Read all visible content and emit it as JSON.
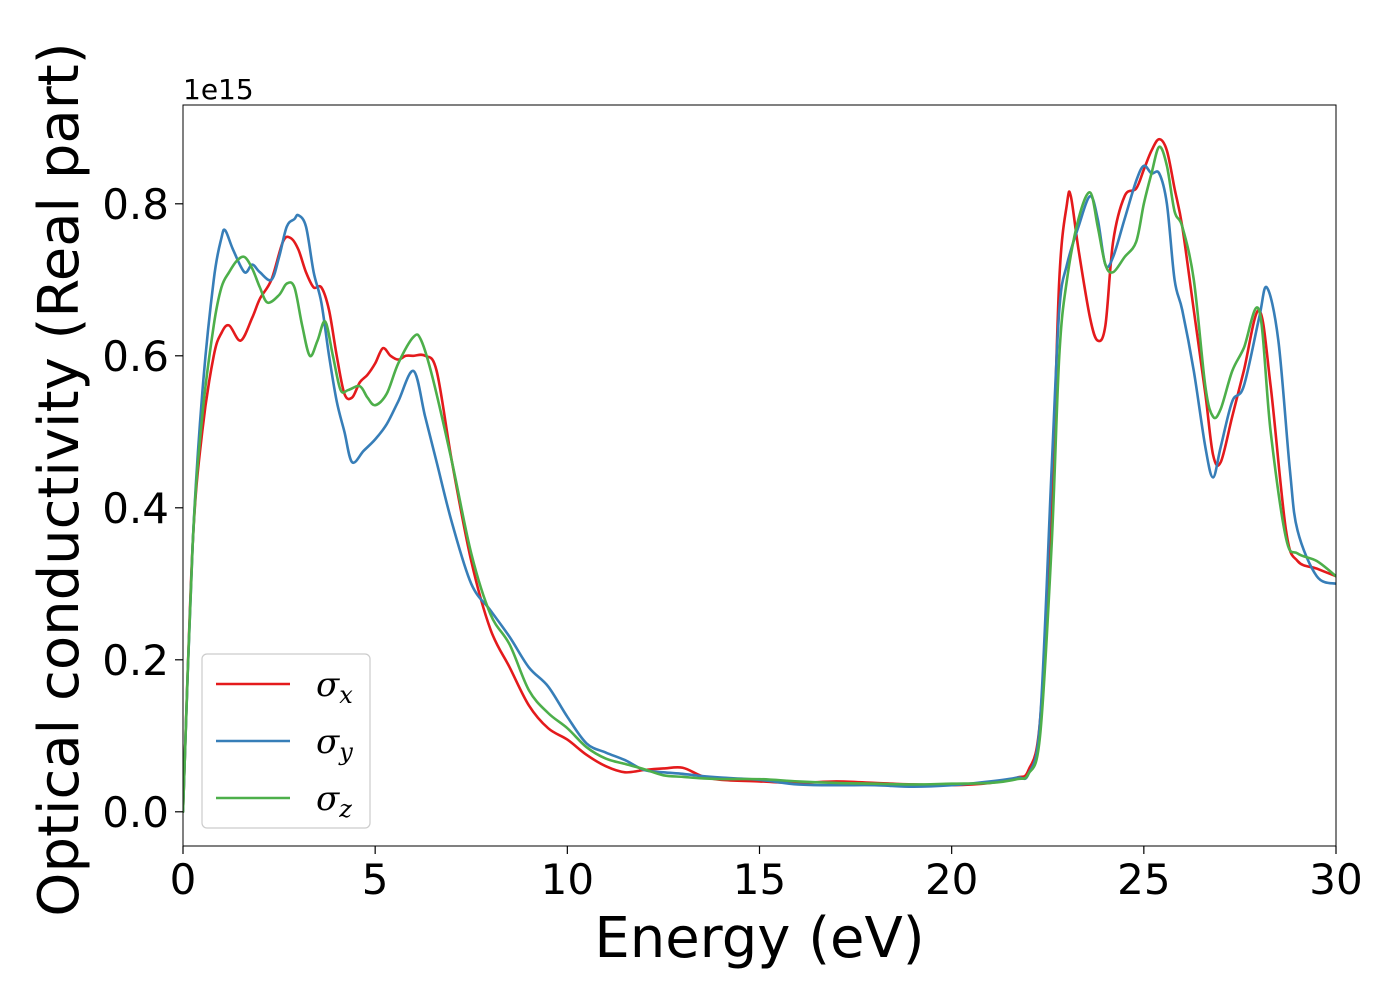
{
  "chart_data": {
    "type": "line",
    "xlabel": "Energy (eV)",
    "ylabel": "Optical conductivity (Real part)",
    "y_offset_label": "1e15",
    "xlim": [
      0,
      30
    ],
    "ylim": [
      -0.045,
      0.93
    ],
    "xticks": [
      0,
      5,
      10,
      15,
      20,
      25,
      30
    ],
    "xtick_labels": [
      "0",
      "5",
      "10",
      "15",
      "20",
      "25",
      "30"
    ],
    "yticks": [
      0.0,
      0.2,
      0.4,
      0.6,
      0.8
    ],
    "ytick_labels": [
      "0.0",
      "0.2",
      "0.4",
      "0.6",
      "0.8"
    ],
    "grid": false,
    "legend_position": "lower-left",
    "series": [
      {
        "name": "σ",
        "subscript": "x",
        "color": "#e41a1c",
        "x": [
          0,
          0.25,
          0.5,
          0.8,
          1.0,
          1.2,
          1.5,
          1.8,
          2.0,
          2.3,
          2.6,
          2.8,
          3.0,
          3.2,
          3.4,
          3.6,
          3.8,
          4.0,
          4.2,
          4.4,
          4.6,
          4.8,
          5.0,
          5.2,
          5.4,
          5.6,
          5.8,
          6.0,
          6.3,
          6.6,
          7.0,
          7.5,
          8.0,
          8.5,
          9.0,
          9.5,
          10.0,
          10.5,
          11.0,
          11.5,
          12.0,
          12.5,
          13.0,
          13.5,
          14.0,
          15.0,
          16.0,
          17.0,
          18.0,
          19.0,
          20.0,
          21.0,
          21.7,
          22.0,
          22.3,
          22.6,
          22.8,
          23.0,
          23.1,
          23.3,
          23.6,
          23.8,
          24.0,
          24.2,
          24.5,
          24.8,
          25.0,
          25.2,
          25.4,
          25.6,
          25.8,
          26.0,
          26.3,
          26.6,
          26.8,
          27.0,
          27.3,
          27.6,
          28.0,
          28.3,
          28.7,
          29.0,
          29.5,
          30.0
        ],
        "y": [
          0.0,
          0.35,
          0.5,
          0.6,
          0.63,
          0.64,
          0.62,
          0.65,
          0.675,
          0.7,
          0.75,
          0.755,
          0.74,
          0.71,
          0.69,
          0.69,
          0.66,
          0.6,
          0.55,
          0.545,
          0.565,
          0.575,
          0.59,
          0.61,
          0.6,
          0.595,
          0.6,
          0.6,
          0.6,
          0.58,
          0.46,
          0.33,
          0.24,
          0.19,
          0.14,
          0.11,
          0.095,
          0.075,
          0.06,
          0.052,
          0.055,
          0.057,
          0.058,
          0.047,
          0.042,
          0.04,
          0.038,
          0.04,
          0.038,
          0.036,
          0.035,
          0.038,
          0.045,
          0.055,
          0.12,
          0.4,
          0.7,
          0.8,
          0.81,
          0.74,
          0.65,
          0.62,
          0.64,
          0.75,
          0.81,
          0.82,
          0.845,
          0.87,
          0.885,
          0.87,
          0.82,
          0.77,
          0.66,
          0.55,
          0.47,
          0.46,
          0.52,
          0.58,
          0.66,
          0.56,
          0.37,
          0.33,
          0.32,
          0.31
        ]
      },
      {
        "name": "σ",
        "subscript": "y",
        "color": "#377eb8",
        "x": [
          0,
          0.25,
          0.5,
          0.8,
          1.0,
          1.1,
          1.3,
          1.6,
          1.8,
          2.0,
          2.3,
          2.5,
          2.7,
          2.9,
          3.0,
          3.2,
          3.4,
          3.6,
          3.8,
          4.0,
          4.2,
          4.4,
          4.7,
          5.0,
          5.3,
          5.6,
          6.0,
          6.3,
          6.6,
          7.0,
          7.5,
          8.0,
          8.5,
          9.0,
          9.5,
          10.0,
          10.5,
          11.0,
          11.5,
          12.0,
          12.5,
          13.0,
          13.5,
          14.0,
          15.0,
          16.0,
          17.0,
          18.0,
          19.0,
          20.0,
          21.0,
          21.7,
          22.0,
          22.3,
          22.6,
          22.8,
          23.0,
          23.3,
          23.6,
          23.8,
          24.0,
          24.2,
          24.5,
          24.8,
          25.0,
          25.2,
          25.4,
          25.6,
          25.8,
          26.0,
          26.3,
          26.6,
          26.8,
          27.0,
          27.3,
          27.6,
          28.0,
          28.2,
          28.5,
          28.8,
          29.0,
          29.5,
          30.0
        ],
        "y": [
          0.0,
          0.35,
          0.55,
          0.7,
          0.755,
          0.765,
          0.74,
          0.71,
          0.72,
          0.71,
          0.7,
          0.73,
          0.77,
          0.78,
          0.785,
          0.77,
          0.71,
          0.67,
          0.6,
          0.54,
          0.5,
          0.46,
          0.475,
          0.49,
          0.51,
          0.54,
          0.58,
          0.52,
          0.46,
          0.38,
          0.3,
          0.265,
          0.23,
          0.19,
          0.165,
          0.125,
          0.09,
          0.078,
          0.068,
          0.055,
          0.052,
          0.05,
          0.047,
          0.045,
          0.042,
          0.036,
          0.035,
          0.035,
          0.033,
          0.035,
          0.04,
          0.045,
          0.05,
          0.12,
          0.45,
          0.66,
          0.72,
          0.77,
          0.81,
          0.78,
          0.72,
          0.73,
          0.78,
          0.83,
          0.85,
          0.84,
          0.84,
          0.8,
          0.7,
          0.66,
          0.58,
          0.48,
          0.44,
          0.48,
          0.54,
          0.56,
          0.65,
          0.69,
          0.62,
          0.45,
          0.37,
          0.31,
          0.3
        ]
      },
      {
        "name": "σ",
        "subscript": "z",
        "color": "#4daf4a",
        "x": [
          0,
          0.25,
          0.5,
          0.8,
          1.0,
          1.2,
          1.4,
          1.6,
          1.8,
          2.0,
          2.2,
          2.5,
          2.7,
          2.9,
          3.1,
          3.3,
          3.5,
          3.7,
          3.9,
          4.1,
          4.3,
          4.6,
          4.8,
          5.0,
          5.3,
          5.6,
          6.0,
          6.2,
          6.5,
          7.0,
          7.5,
          8.0,
          8.5,
          9.0,
          9.5,
          10.0,
          10.5,
          11.0,
          11.5,
          12.0,
          12.5,
          13.0,
          13.5,
          14.0,
          15.0,
          16.0,
          17.0,
          18.0,
          19.0,
          20.0,
          21.0,
          21.7,
          22.0,
          22.3,
          22.6,
          22.8,
          23.0,
          23.3,
          23.6,
          23.8,
          24.0,
          24.2,
          24.5,
          24.8,
          25.0,
          25.2,
          25.4,
          25.6,
          25.8,
          26.0,
          26.3,
          26.6,
          26.8,
          27.0,
          27.3,
          27.6,
          28.0,
          28.3,
          28.7,
          29.0,
          29.5,
          30.0
        ],
        "y": [
          0.0,
          0.35,
          0.52,
          0.64,
          0.69,
          0.71,
          0.725,
          0.73,
          0.715,
          0.69,
          0.67,
          0.68,
          0.695,
          0.69,
          0.64,
          0.6,
          0.62,
          0.645,
          0.6,
          0.555,
          0.555,
          0.56,
          0.545,
          0.535,
          0.55,
          0.59,
          0.625,
          0.62,
          0.57,
          0.46,
          0.34,
          0.26,
          0.22,
          0.16,
          0.13,
          0.11,
          0.085,
          0.07,
          0.063,
          0.056,
          0.048,
          0.046,
          0.044,
          0.043,
          0.043,
          0.04,
          0.038,
          0.037,
          0.036,
          0.037,
          0.038,
          0.043,
          0.05,
          0.1,
          0.35,
          0.6,
          0.7,
          0.78,
          0.815,
          0.77,
          0.72,
          0.71,
          0.73,
          0.75,
          0.8,
          0.84,
          0.875,
          0.85,
          0.79,
          0.77,
          0.7,
          0.56,
          0.52,
          0.53,
          0.58,
          0.61,
          0.66,
          0.5,
          0.36,
          0.34,
          0.33,
          0.31
        ]
      }
    ]
  }
}
